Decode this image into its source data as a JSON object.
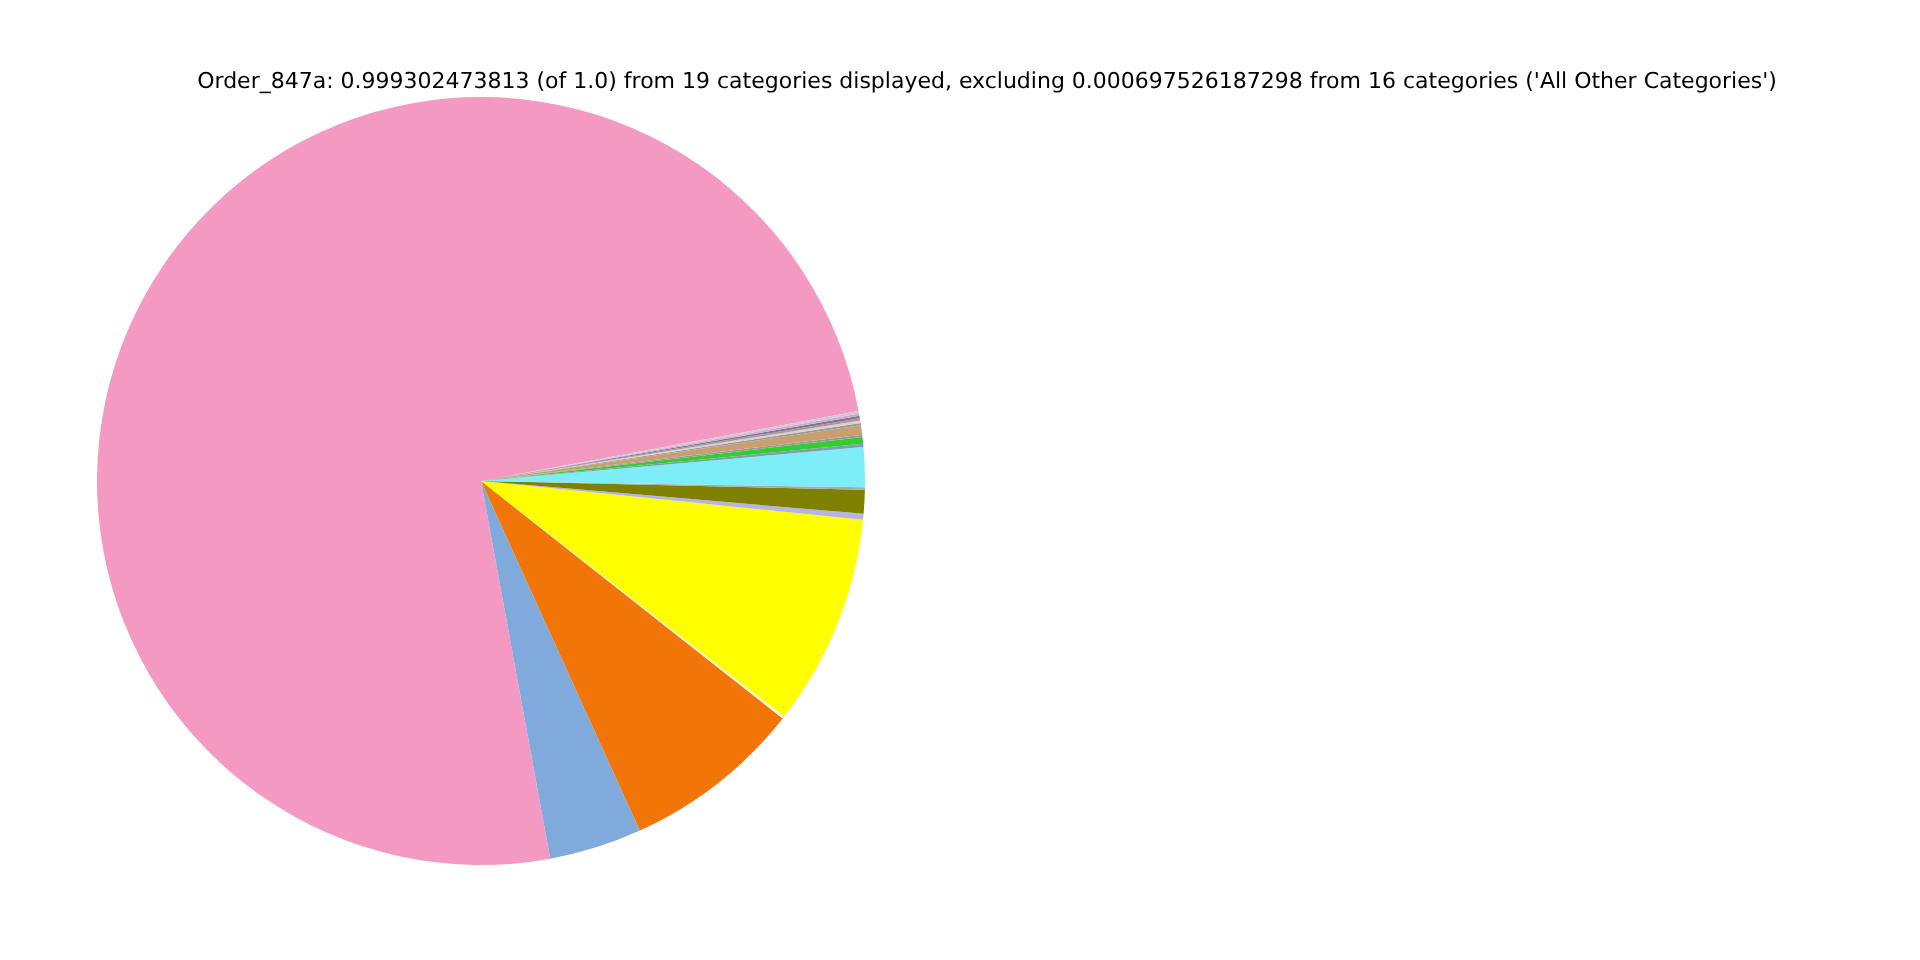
{
  "chart_data": {
    "type": "pie",
    "title": "Order_847a: 0.999302473813 (of 1.0) from 19 categories displayed, excluding 0.000697526187298 from 16 categories ('All Other Categories')",
    "categories": [
      null,
      null,
      null,
      null,
      null,
      null,
      null,
      null,
      null,
      null,
      null,
      null,
      null,
      null,
      null,
      null,
      null,
      null,
      null
    ],
    "values": [
      74.97,
      3.9,
      7.6,
      0.1,
      8.9,
      0.25,
      1.0,
      0.1,
      1.67,
      0.14,
      0.28,
      0.1,
      0.39,
      0.1,
      0.1,
      0.1,
      0.1,
      0.1,
      0.1
    ],
    "colors": [
      "#f49ac2",
      "#7faadb",
      "#f27507",
      "#f5f5dc",
      "#ffff00",
      "#b6b4e6",
      "#808000",
      "#a9a9a9",
      "#7deef7",
      "#7f9fb0",
      "#32cd32",
      "#999999",
      "#c8a070",
      "#9a9a9a",
      "#d3d3d3",
      "#bc8f8f",
      "#708090",
      "#dda0dd",
      "#cccccc"
    ]
  }
}
